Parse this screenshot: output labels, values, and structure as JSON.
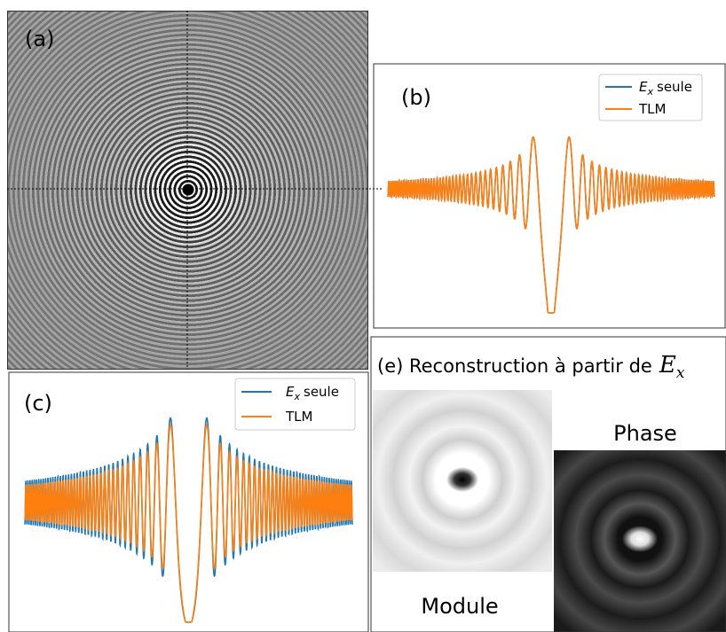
{
  "panel_a": {
    "label": "(a)"
  },
  "panel_b": {
    "label": "(b)",
    "legend": [
      {
        "symbol": "E",
        "subscript": "x",
        "text": "seule"
      },
      {
        "text": "TLM"
      }
    ]
  },
  "panel_c": {
    "label": "(c)",
    "legend": [
      {
        "symbol": "E",
        "subscript": "x",
        "text": "seule"
      },
      {
        "text": "TLM"
      }
    ]
  },
  "panel_e": {
    "title": "(e) Reconstruction à partir de",
    "title_symbol": "E",
    "title_subscript": "x",
    "module_label": "Module",
    "phase_label": "Phase"
  }
}
